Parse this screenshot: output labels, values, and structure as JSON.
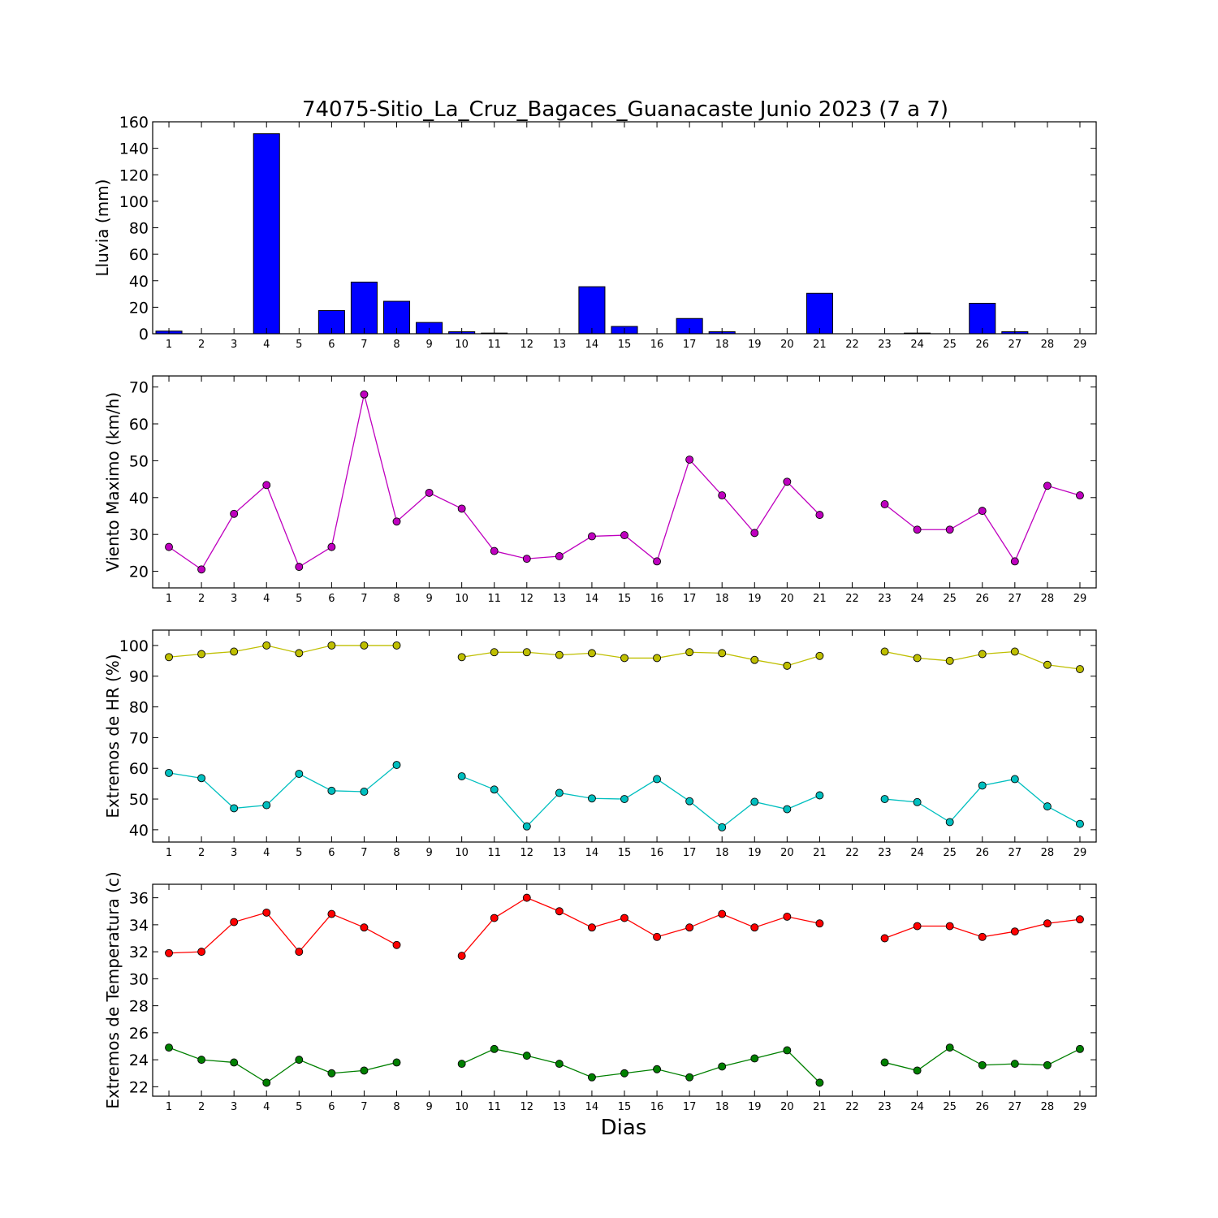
{
  "chart_data": {
    "type": "multi-panel",
    "title": "74075-Sitio_La_Cruz_Bagaces_Guanacaste Junio 2023  (7 a 7)",
    "xlabel": "Dias",
    "days": [
      1,
      2,
      3,
      4,
      5,
      6,
      7,
      8,
      9,
      10,
      11,
      12,
      13,
      14,
      15,
      16,
      17,
      18,
      19,
      20,
      21,
      22,
      23,
      24,
      25,
      26,
      27,
      28,
      29
    ],
    "panels": [
      {
        "type": "bar",
        "ylabel": "Lluvia (mm)",
        "ylim": [
          0,
          160
        ],
        "yticks": [
          0,
          20,
          40,
          60,
          80,
          100,
          120,
          140,
          160
        ],
        "series": [
          {
            "color": "#0000ff",
            "values": [
              2.0,
              0,
              0,
              151.0,
              0,
              17.5,
              39.0,
              24.5,
              8.5,
              1.5,
              0.5,
              0,
              0,
              35.5,
              5.5,
              0,
              11.5,
              1.5,
              0,
              0,
              30.5,
              0,
              0,
              0.5,
              0,
              23.0,
              1.5,
              0,
              0
            ]
          }
        ]
      },
      {
        "type": "line",
        "ylabel": "Viento Maximo (km/h)",
        "ylim": [
          15.5,
          73
        ],
        "yticks": [
          20,
          30,
          40,
          50,
          60,
          70
        ],
        "series": [
          {
            "color": "#bf00bf",
            "values": [
              26.6,
              20.5,
              35.6,
              43.4,
              21.2,
              26.6,
              68.0,
              33.5,
              41.3,
              37.0,
              25.5,
              23.4,
              24.1,
              29.5,
              29.8,
              22.7,
              50.3,
              40.6,
              30.4,
              44.3,
              35.3,
              null,
              38.2,
              31.3,
              31.3,
              36.4,
              22.7,
              43.2,
              40.6
            ]
          }
        ]
      },
      {
        "type": "line",
        "ylabel": "Extremos de HR (%)",
        "ylim": [
          36,
          105
        ],
        "yticks": [
          40,
          50,
          60,
          70,
          80,
          90,
          100
        ],
        "series": [
          {
            "color": "#bfbf00",
            "values": [
              96.2,
              97.2,
              98.0,
              100,
              97.5,
              100,
              100,
              100,
              null,
              96.2,
              97.8,
              97.8,
              96.9,
              97.5,
              95.9,
              95.9,
              97.8,
              97.5,
              95.3,
              93.4,
              96.6,
              null,
              98.0,
              95.9,
              95.0,
              97.2,
              98.0,
              93.7,
              92.3
            ]
          },
          {
            "color": "#00bfbf",
            "values": [
              58.5,
              56.8,
              47.0,
              48.0,
              58.2,
              52.7,
              52.4,
              61.1,
              null,
              57.4,
              53.1,
              41.1,
              52.0,
              50.2,
              50.0,
              56.5,
              49.3,
              40.8,
              49.1,
              46.7,
              51.2,
              null,
              50.0,
              49.0,
              42.5,
              54.4,
              56.5,
              47.6,
              41.9
            ]
          }
        ]
      },
      {
        "type": "line",
        "ylabel": "Extremos de Temperatura (c)",
        "ylim": [
          21.3,
          37
        ],
        "yticks": [
          22,
          24,
          26,
          28,
          30,
          32,
          34,
          36
        ],
        "series": [
          {
            "color": "#ff0000",
            "values": [
              31.9,
              32.0,
              34.2,
              34.9,
              32.0,
              34.8,
              33.8,
              32.5,
              null,
              31.7,
              34.5,
              36.0,
              35.0,
              33.8,
              34.5,
              33.1,
              33.8,
              34.8,
              33.8,
              34.6,
              34.1,
              null,
              33.0,
              33.9,
              33.9,
              33.1,
              33.5,
              34.1,
              34.4
            ]
          },
          {
            "color": "#008000",
            "values": [
              24.9,
              24.0,
              23.8,
              22.3,
              24.0,
              23.0,
              23.2,
              23.8,
              null,
              23.7,
              24.8,
              24.3,
              23.7,
              22.7,
              23.0,
              23.3,
              22.7,
              23.5,
              24.1,
              24.7,
              22.3,
              null,
              23.8,
              23.2,
              24.9,
              23.6,
              23.7,
              23.6,
              24.8
            ]
          }
        ]
      }
    ]
  }
}
